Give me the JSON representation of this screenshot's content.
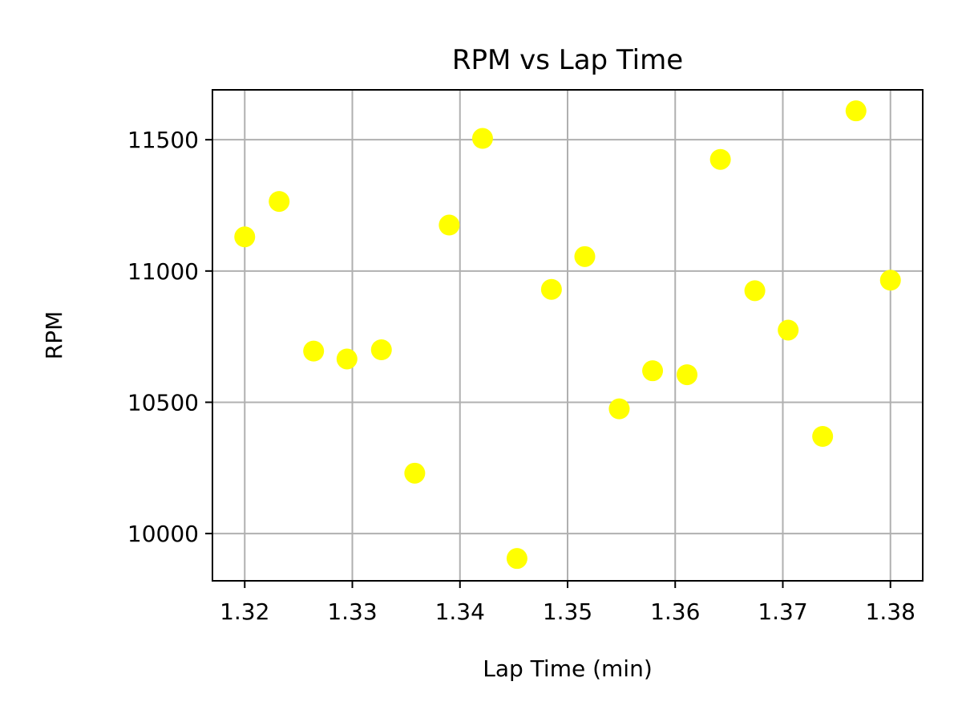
{
  "chart_data": {
    "type": "scatter",
    "title": "RPM vs Lap Time",
    "xlabel": "Lap Time (min)",
    "ylabel": "RPM",
    "xlim": [
      1.317,
      1.383
    ],
    "ylim": [
      9820,
      11690
    ],
    "xticks": [
      1.32,
      1.33,
      1.34,
      1.35,
      1.36,
      1.37,
      1.38
    ],
    "xtick_labels": [
      "1.32",
      "1.33",
      "1.34",
      "1.35",
      "1.36",
      "1.37",
      "1.38"
    ],
    "yticks": [
      10000,
      10500,
      11000,
      11500
    ],
    "ytick_labels": [
      "10000",
      "10500",
      "11000",
      "11500"
    ],
    "grid": true,
    "marker_color": "#ffff00",
    "points": [
      {
        "x": 1.32,
        "y": 11130
      },
      {
        "x": 1.3232,
        "y": 11265
      },
      {
        "x": 1.3264,
        "y": 10695
      },
      {
        "x": 1.3295,
        "y": 10665
      },
      {
        "x": 1.3327,
        "y": 10700
      },
      {
        "x": 1.3358,
        "y": 10230
      },
      {
        "x": 1.339,
        "y": 11175
      },
      {
        "x": 1.3421,
        "y": 11505
      },
      {
        "x": 1.3453,
        "y": 9905
      },
      {
        "x": 1.3485,
        "y": 10930
      },
      {
        "x": 1.3516,
        "y": 11055
      },
      {
        "x": 1.3548,
        "y": 10475
      },
      {
        "x": 1.3579,
        "y": 10620
      },
      {
        "x": 1.3611,
        "y": 10605
      },
      {
        "x": 1.3642,
        "y": 11425
      },
      {
        "x": 1.3674,
        "y": 10925
      },
      {
        "x": 1.3705,
        "y": 10775
      },
      {
        "x": 1.3737,
        "y": 10370
      },
      {
        "x": 1.3768,
        "y": 11610
      },
      {
        "x": 1.38,
        "y": 10965
      }
    ]
  }
}
